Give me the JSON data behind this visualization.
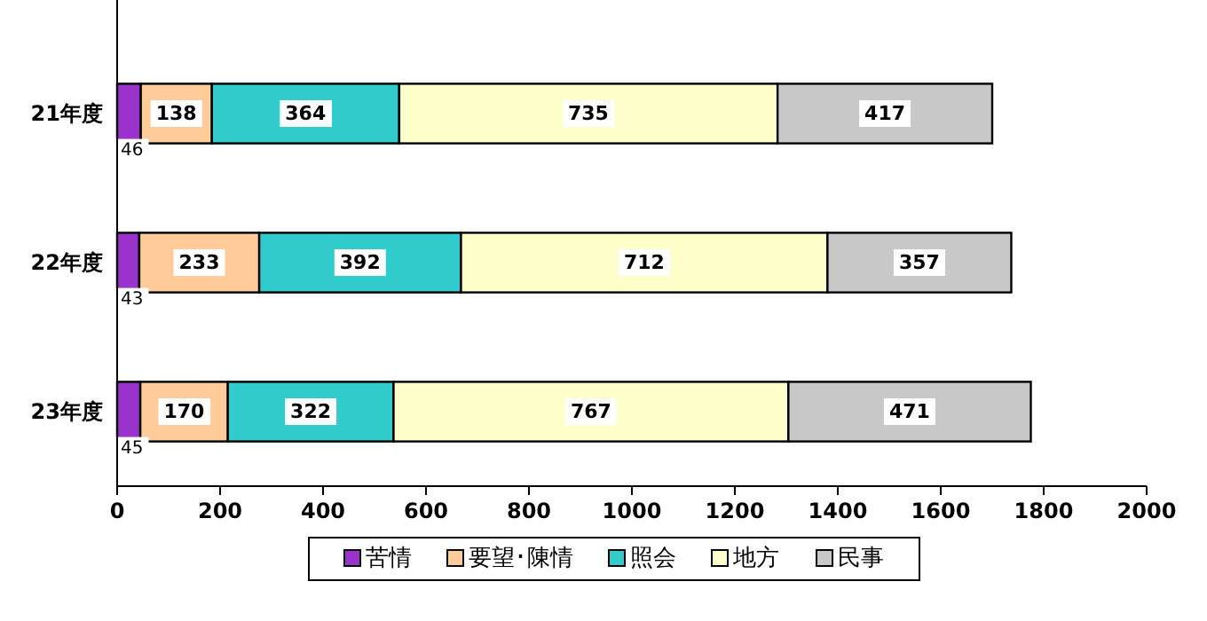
{
  "chart_data": {
    "type": "bar",
    "orientation": "horizontal",
    "stacked": true,
    "data_labels": true,
    "legend": "bottom",
    "grid": false,
    "categories": [
      "21年度",
      "22年度",
      "23年度"
    ],
    "series": [
      {
        "name": "苦情",
        "color": "#9933cc",
        "values": [
          46,
          43,
          45
        ]
      },
      {
        "name": "要望･陳情",
        "color": "#ffcc99",
        "values": [
          138,
          233,
          170
        ]
      },
      {
        "name": "照会",
        "color": "#33cccc",
        "values": [
          364,
          392,
          322
        ]
      },
      {
        "name": "地方",
        "color": "#ffffcc",
        "values": [
          735,
          712,
          767
        ]
      },
      {
        "name": "民事",
        "color": "#c8c8c8",
        "values": [
          417,
          357,
          471
        ]
      }
    ],
    "xlim": [
      0,
      2000
    ],
    "xticks": [
      0,
      200,
      400,
      600,
      800,
      1000,
      1200,
      1400,
      1600,
      1800,
      2000
    ]
  }
}
